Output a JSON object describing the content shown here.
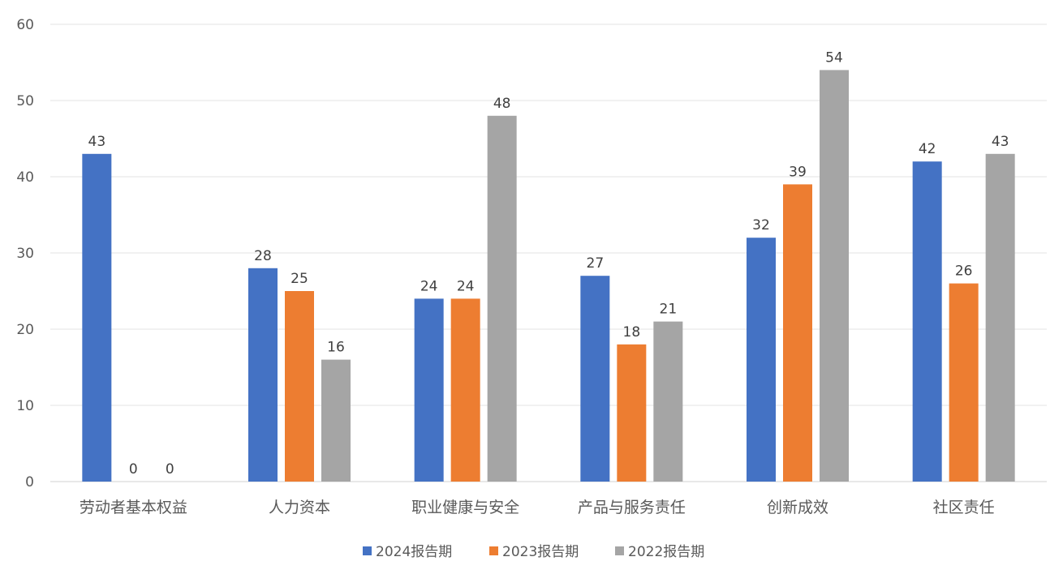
{
  "chart_data": {
    "type": "bar",
    "title": "",
    "xlabel": "",
    "ylabel": "",
    "categories": [
      "劳动者基本权益",
      "人力资本",
      "职业健康与安全",
      "产品与服务责任",
      "创新成效",
      "社区责任"
    ],
    "series": [
      {
        "name": "2024报告期",
        "color": "#4472C4",
        "values": [
          43,
          28,
          24,
          27,
          32,
          42
        ]
      },
      {
        "name": "2023报告期",
        "color": "#ED7D31",
        "values": [
          0,
          25,
          24,
          18,
          39,
          26
        ]
      },
      {
        "name": "2022报告期",
        "color": "#A5A5A5",
        "values": [
          0,
          16,
          48,
          21,
          54,
          43
        ]
      }
    ],
    "ylim": [
      0,
      60
    ],
    "yticks": [
      0,
      10,
      20,
      30,
      40,
      50,
      60
    ],
    "grid": true,
    "data_labels": true,
    "legend_position": "bottom"
  }
}
